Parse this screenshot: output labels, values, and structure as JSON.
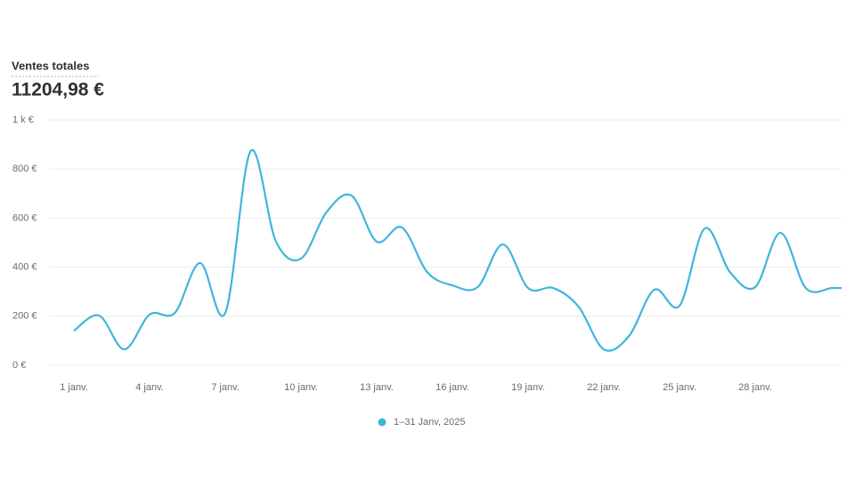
{
  "chart_data": {
    "type": "line",
    "title": "Ventes totales",
    "total": "11204,98 €",
    "categories": [
      "1 janv.",
      null,
      null,
      "4 janv.",
      null,
      null,
      "7 janv.",
      null,
      null,
      "10 janv.",
      null,
      null,
      "13 janv.",
      null,
      null,
      "16 janv.",
      null,
      null,
      "19 janv.",
      null,
      null,
      "22 janv.",
      null,
      null,
      "25 janv.",
      null,
      null,
      "28 janv.",
      null,
      null,
      null
    ],
    "series": [
      {
        "name": "1–31 Janv, 2025",
        "color": "#3fb6dc",
        "values": [
          141,
          203,
          65,
          207,
          214,
          417,
          214,
          873,
          507,
          435,
          623,
          692,
          504,
          562,
          380,
          326,
          319,
          493,
          315,
          315,
          239,
          65,
          120,
          308,
          243,
          558,
          380,
          319,
          540,
          315,
          315
        ]
      }
    ],
    "ylim": [
      0,
      1000
    ],
    "yticks": [
      {
        "value": 0,
        "label": "0 €"
      },
      {
        "value": 200,
        "label": "200 €"
      },
      {
        "value": 400,
        "label": "400 €"
      },
      {
        "value": 600,
        "label": "600 €"
      },
      {
        "value": 800,
        "label": "800 €"
      },
      {
        "value": 1000,
        "label": "1 k €"
      }
    ],
    "grid": true
  }
}
